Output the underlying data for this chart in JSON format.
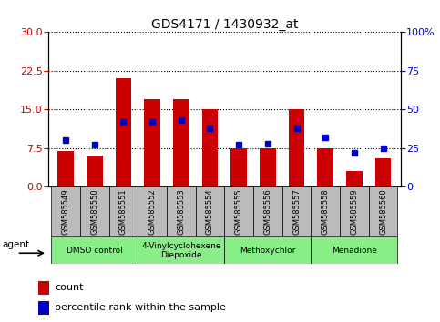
{
  "title": "GDS4171 / 1430932_at",
  "samples": [
    "GSM585549",
    "GSM585550",
    "GSM585551",
    "GSM585552",
    "GSM585553",
    "GSM585554",
    "GSM585555",
    "GSM585556",
    "GSM585557",
    "GSM585558",
    "GSM585559",
    "GSM585560"
  ],
  "counts": [
    7.0,
    6.0,
    21.0,
    17.0,
    17.0,
    15.0,
    7.5,
    7.5,
    15.0,
    7.5,
    3.0,
    5.5
  ],
  "percentiles": [
    30,
    27,
    42,
    42,
    43,
    38,
    27,
    28,
    38,
    32,
    22,
    25
  ],
  "ylim_left": [
    0,
    30
  ],
  "ylim_right": [
    0,
    100
  ],
  "yticks_left": [
    0,
    7.5,
    15,
    22.5,
    30
  ],
  "yticks_right": [
    0,
    25,
    50,
    75,
    100
  ],
  "bar_color": "#cc0000",
  "dot_color": "#0000cc",
  "bar_width": 0.55,
  "groups": [
    {
      "label": "DMSO control",
      "start": 0,
      "end": 3
    },
    {
      "label": "4-Vinylcyclohexene\nDiepoxide",
      "start": 3,
      "end": 6
    },
    {
      "label": "Methoxychlor",
      "start": 6,
      "end": 9
    },
    {
      "label": "Menadione",
      "start": 9,
      "end": 12
    }
  ],
  "group_color": "#88ee88",
  "tick_bg_color": "#bbbbbb",
  "agent_label": "agent",
  "legend_count_label": "count",
  "legend_pct_label": "percentile rank within the sample",
  "grid_color": "black",
  "title_fontsize": 10,
  "tick_fontsize": 6,
  "axis_label_color_left": "#cc0000",
  "axis_label_color_right": "#0000cc"
}
